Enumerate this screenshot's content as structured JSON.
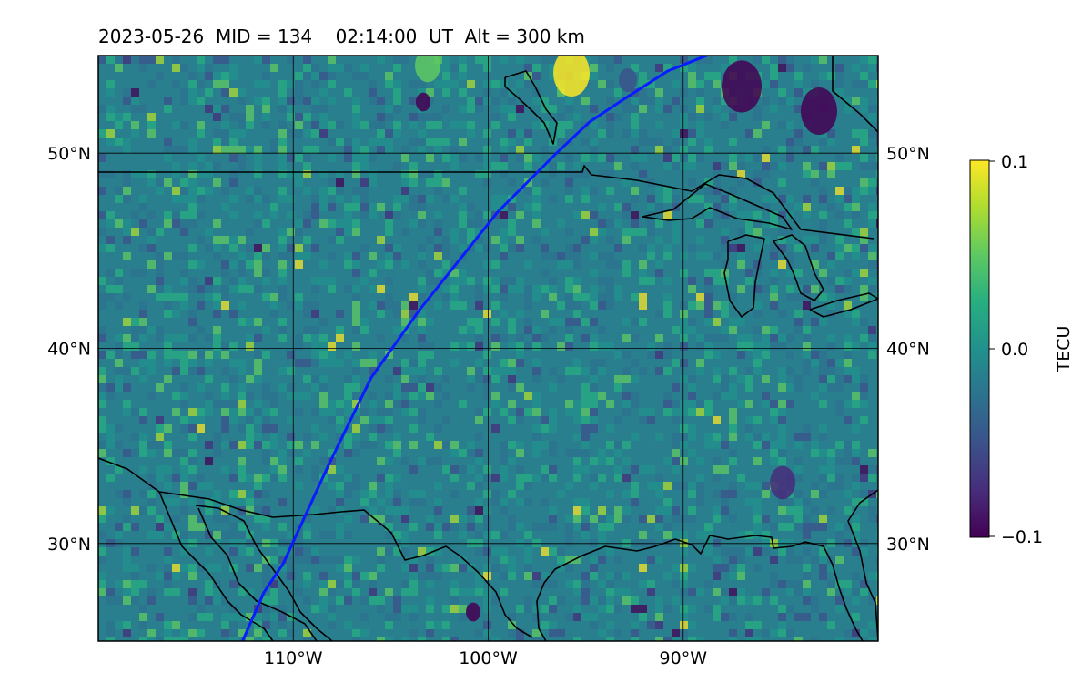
{
  "title": "2023-05-26  MID = 134    02:14:00  UT  Alt = 300 km",
  "map": {
    "lon_range": [
      -120,
      -80
    ],
    "lat_range": [
      25,
      55
    ],
    "grid": true,
    "lat_gridlines": [
      30,
      40,
      50
    ],
    "lon_gridlines": [
      -110,
      -100,
      -90
    ],
    "lat_tick_labels": [
      "30°N",
      "40°N",
      "50°N"
    ],
    "lon_tick_labels": [
      "110°W",
      "100°W",
      "90°W"
    ],
    "background_color": "#2a7f8e",
    "coastline_color": "#000000",
    "track_color": "#0a1cff"
  },
  "track": {
    "lon": [
      -112.6,
      -111.5,
      -110.5,
      -108.2,
      -106.0,
      -103.5,
      -101.5,
      -99.5,
      -98.0,
      -96.5,
      -94.8,
      -93.0,
      -90.8,
      -88.8
    ],
    "lat": [
      25.0,
      27.5,
      29.0,
      34.0,
      38.5,
      42.0,
      44.5,
      47.0,
      48.5,
      50.0,
      51.6,
      52.8,
      54.2,
      55.0
    ]
  },
  "colorbar": {
    "label": "TECU",
    "min": -0.1,
    "max": 0.1,
    "tick_labels": [
      "0.1",
      "0.0",
      "−0.1"
    ],
    "colormap": "viridis"
  }
}
